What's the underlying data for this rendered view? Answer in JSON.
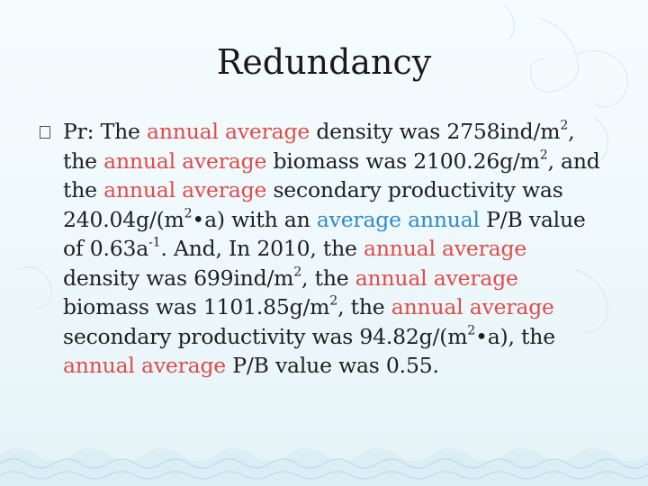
{
  "slide": {
    "title": "Redundancy",
    "paragraph": [
      {
        "t": "Pr: The "
      },
      {
        "t": "annual average",
        "c": "hl"
      },
      {
        "t": " density was 2758ind/m"
      },
      {
        "t": "2",
        "c": "sup"
      },
      {
        "t": ", the "
      },
      {
        "t": "annual average",
        "c": "hl"
      },
      {
        "t": " biomass was 2100.26g/m"
      },
      {
        "t": "2",
        "c": "sup"
      },
      {
        "t": ", and the "
      },
      {
        "t": "annual average",
        "c": "hl"
      },
      {
        "t": " secondary productivity was 240.04g/(m"
      },
      {
        "t": "2",
        "c": "sup"
      },
      {
        "t": "•a) with an "
      },
      {
        "t": "average annual",
        "c": "hl2"
      },
      {
        "t": " P/B value of 0.63a"
      },
      {
        "t": "-1",
        "c": "sup"
      },
      {
        "t": ". And, In 2010, the "
      },
      {
        "t": "annual average",
        "c": "hl"
      },
      {
        "t": " density was 699ind/m"
      },
      {
        "t": "2",
        "c": "sup"
      },
      {
        "t": ", the "
      },
      {
        "t": "annual average",
        "c": "hl"
      },
      {
        "t": " biomass was 1101.85g/m"
      },
      {
        "t": "2",
        "c": "sup"
      },
      {
        "t": ", the "
      },
      {
        "t": "annual average",
        "c": "hl"
      },
      {
        "t": " secondary productivity was 94.82g/(m"
      },
      {
        "t": "2",
        "c": "sup"
      },
      {
        "t": "•a), the "
      },
      {
        "t": "annual average",
        "c": "hl"
      },
      {
        "t": " P/B value was 0.55."
      }
    ]
  },
  "colors": {
    "highlight": "#e24a4a",
    "highlight_alt": "#2e8bd0",
    "text": "#1f1f1f"
  }
}
